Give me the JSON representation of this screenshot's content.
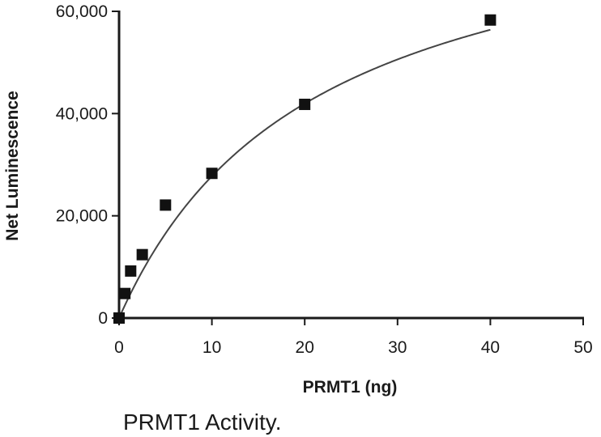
{
  "caption": "PRMT1 Activity.",
  "chart_data": {
    "type": "scatter",
    "title": "",
    "xlabel": "PRMT1 (ng)",
    "ylabel": "Net Luminescence",
    "xlim": [
      0,
      50
    ],
    "ylim": [
      0,
      60000
    ],
    "x_ticks": [
      0,
      10,
      20,
      30,
      40,
      50
    ],
    "y_ticks": [
      0,
      20000,
      40000,
      60000
    ],
    "x_tick_labels": [
      "0",
      "10",
      "20",
      "30",
      "40",
      "50"
    ],
    "y_tick_labels": [
      "0",
      "20,000",
      "40,000",
      "60,000"
    ],
    "grid": false,
    "legend": "none",
    "series": [
      {
        "marker": "square",
        "color": "#111111",
        "x": [
          0,
          0.625,
          1.25,
          2.5,
          5,
          10,
          20,
          40
        ],
        "y": [
          0,
          4800,
          9200,
          12400,
          22100,
          28300,
          41800,
          58300
        ]
      }
    ],
    "fit_curve": {
      "color": "#444444",
      "model": "hyperbolic",
      "vmax": 86000,
      "km": 21,
      "x_range": [
        0,
        40
      ]
    }
  }
}
